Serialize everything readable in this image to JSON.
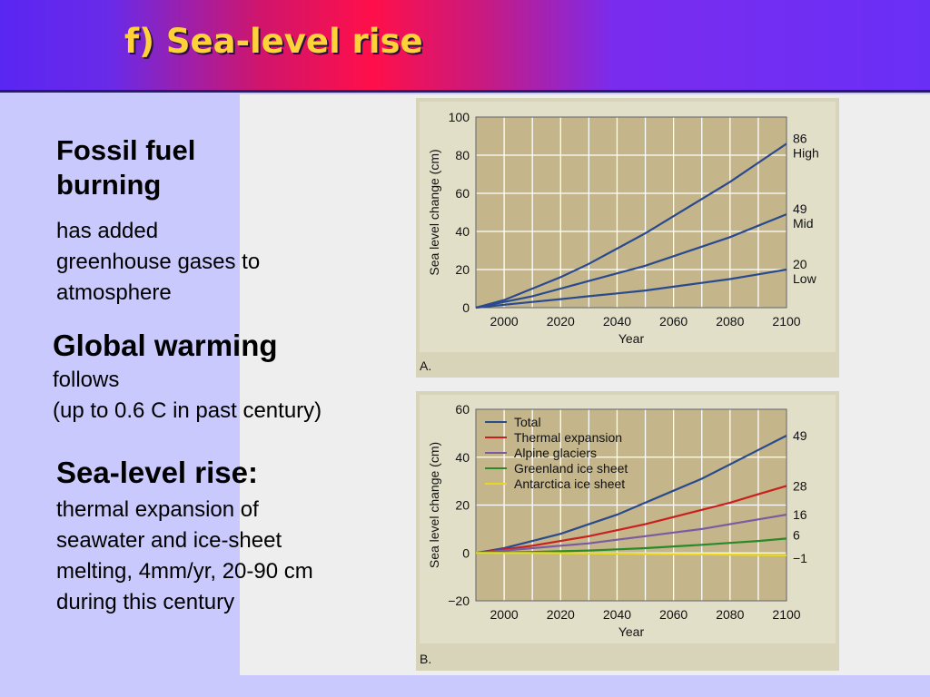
{
  "slide": {
    "title": "f) Sea-level rise",
    "blocks": [
      {
        "heading_lines": [
          "Fossil fuel",
          "burning"
        ],
        "body_lines": [
          "has added",
          "greenhouse gases to",
          "atmosphere"
        ]
      },
      {
        "heading_lines": [
          "Global warming"
        ],
        "body_lines": [
          "follows",
          "(up to 0.6 C in past century)"
        ]
      },
      {
        "heading_lines": [
          "Sea-level rise:"
        ],
        "body_lines": [
          "thermal expansion of",
          "seawater and ice-sheet",
          "melting, 4mm/yr, 20-90 cm",
          "during this century"
        ]
      }
    ]
  },
  "colors": {
    "accent_title": "#ffd23a",
    "plot_bg": "#c4b58a",
    "frame_bg": "#d8d4ba",
    "grid": "#ffffff"
  },
  "chart_data": [
    {
      "type": "line",
      "panel_label": "A.",
      "xlabel": "Year",
      "ylabel": "Sea level change (cm)",
      "xlim": [
        1990,
        2100
      ],
      "ylim": [
        0,
        100
      ],
      "xticks": [
        "2000",
        "2020",
        "2040",
        "2060",
        "2080",
        "2100"
      ],
      "yticks": [
        "0",
        "20",
        "40",
        "60",
        "80",
        "100"
      ],
      "grid": true,
      "series": [
        {
          "name": "High",
          "end_value": "86",
          "color": "#2a4a8e",
          "x": [
            1990,
            2000,
            2010,
            2020,
            2030,
            2040,
            2050,
            2060,
            2070,
            2080,
            2090,
            2100
          ],
          "y": [
            0,
            4,
            10,
            16,
            23,
            31,
            39,
            48,
            57,
            66,
            76,
            86
          ]
        },
        {
          "name": "Mid",
          "end_value": "49",
          "color": "#2a4a8e",
          "x": [
            1990,
            2000,
            2010,
            2020,
            2030,
            2040,
            2050,
            2060,
            2070,
            2080,
            2090,
            2100
          ],
          "y": [
            0,
            3,
            6,
            10,
            14,
            18,
            22,
            27,
            32,
            37,
            43,
            49
          ]
        },
        {
          "name": "Low",
          "end_value": "20",
          "color": "#2a4a8e",
          "x": [
            1990,
            2000,
            2010,
            2020,
            2030,
            2040,
            2050,
            2060,
            2070,
            2080,
            2090,
            2100
          ],
          "y": [
            0,
            1.5,
            3,
            4.5,
            6,
            7.5,
            9,
            11,
            13,
            15,
            17.5,
            20
          ]
        }
      ]
    },
    {
      "type": "line",
      "panel_label": "B.",
      "xlabel": "Year",
      "ylabel": "Sea level change (cm)",
      "xlim": [
        1990,
        2100
      ],
      "ylim": [
        -20,
        60
      ],
      "xticks": [
        "2000",
        "2020",
        "2040",
        "2060",
        "2080",
        "2100"
      ],
      "yticks": [
        "−20",
        "0",
        "20",
        "40",
        "60"
      ],
      "grid": true,
      "legend": "top-left",
      "series": [
        {
          "name": "Total",
          "end_value": "49",
          "color": "#2a4a8e",
          "x": [
            1990,
            2000,
            2010,
            2020,
            2030,
            2040,
            2050,
            2060,
            2070,
            2080,
            2090,
            2100
          ],
          "y": [
            0,
            2,
            5,
            8,
            12,
            16,
            21,
            26,
            31,
            37,
            43,
            49
          ]
        },
        {
          "name": "Thermal expansion",
          "end_value": "28",
          "color": "#c8201e",
          "x": [
            1990,
            2000,
            2010,
            2020,
            2030,
            2040,
            2050,
            2060,
            2070,
            2080,
            2090,
            2100
          ],
          "y": [
            0,
            1.5,
            3,
            5,
            7,
            9.5,
            12,
            15,
            18,
            21,
            24.5,
            28
          ]
        },
        {
          "name": "Alpine glaciers",
          "end_value": "16",
          "color": "#7a5aa0",
          "x": [
            1990,
            2000,
            2010,
            2020,
            2030,
            2040,
            2050,
            2060,
            2070,
            2080,
            2090,
            2100
          ],
          "y": [
            0,
            1,
            2,
            3,
            4,
            5.5,
            7,
            8.5,
            10,
            12,
            14,
            16
          ]
        },
        {
          "name": "Greenland ice sheet",
          "end_value": "6",
          "color": "#2a8a2a",
          "x": [
            1990,
            2000,
            2010,
            2020,
            2030,
            2040,
            2050,
            2060,
            2070,
            2080,
            2090,
            2100
          ],
          "y": [
            0,
            0.2,
            0.4,
            0.7,
            1,
            1.5,
            2,
            2.7,
            3.4,
            4.2,
            5,
            6
          ]
        },
        {
          "name": "Antarctica ice sheet",
          "end_value": "−1",
          "color": "#e8d820",
          "x": [
            1990,
            2000,
            2010,
            2020,
            2030,
            2040,
            2050,
            2060,
            2070,
            2080,
            2090,
            2100
          ],
          "y": [
            0,
            0,
            0,
            -0.1,
            -0.2,
            -0.3,
            -0.4,
            -0.5,
            -0.6,
            -0.7,
            -0.85,
            -1
          ]
        }
      ]
    }
  ]
}
